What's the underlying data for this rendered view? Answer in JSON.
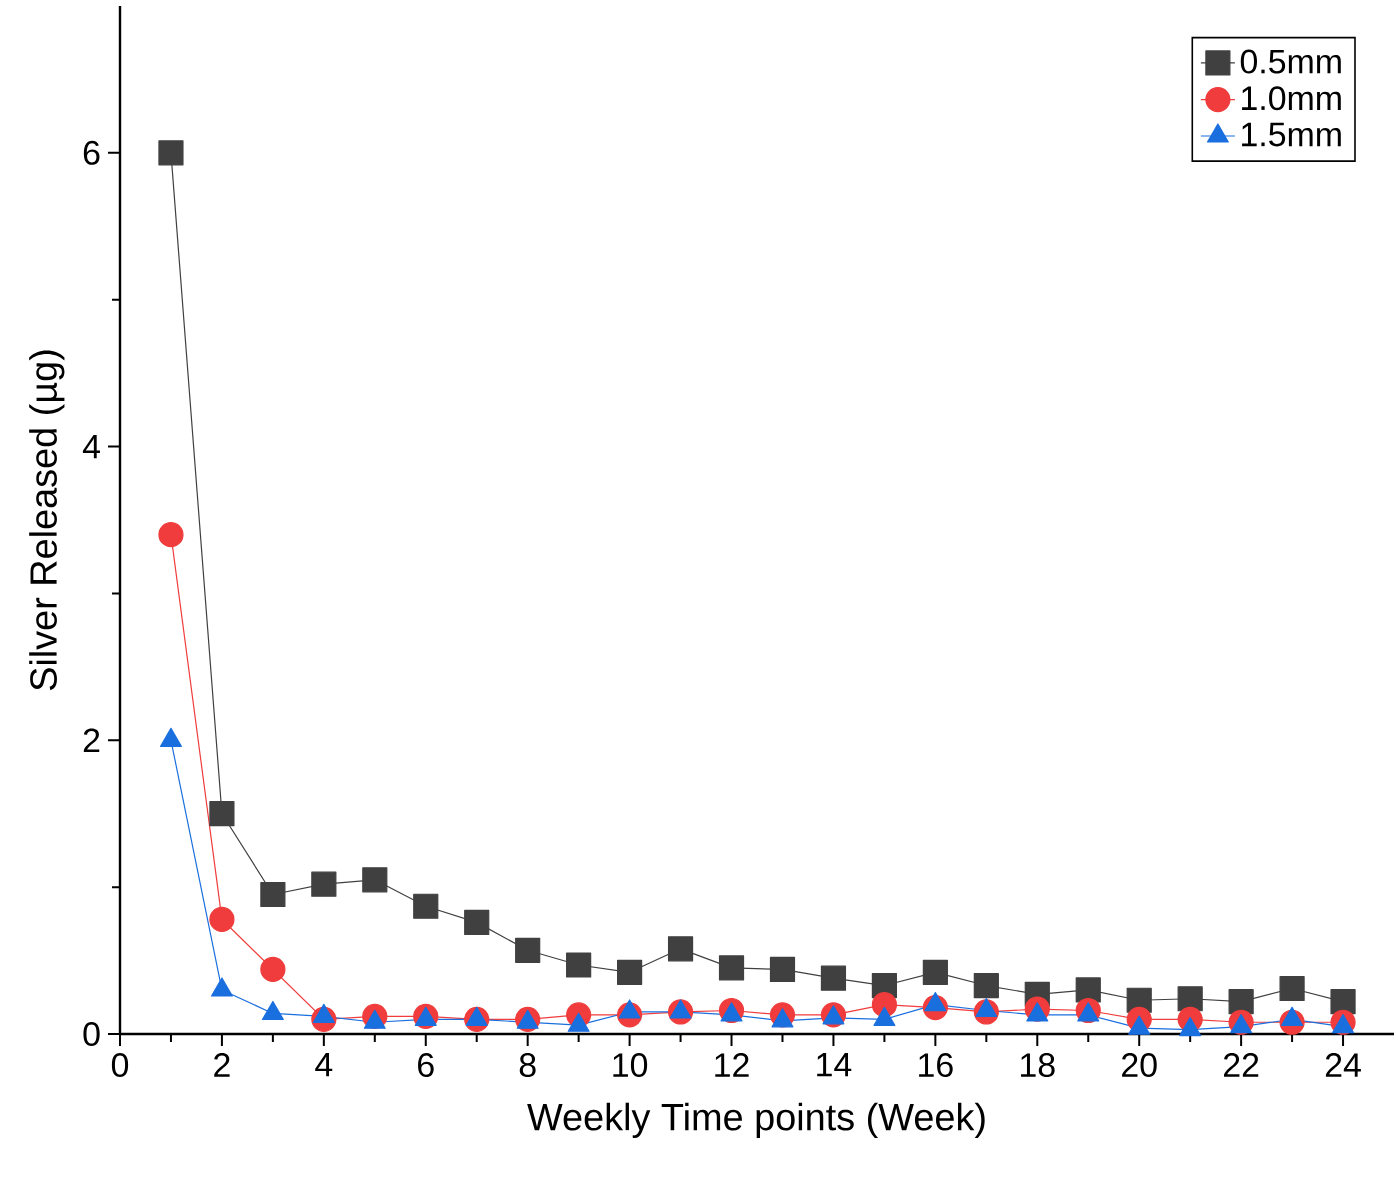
{
  "chart_data": {
    "type": "line",
    "xlabel": "Weekly Time points (Week)",
    "ylabel": "Silver Released (µg)",
    "x": [
      1,
      2,
      3,
      4,
      5,
      6,
      7,
      8,
      9,
      10,
      11,
      12,
      13,
      14,
      15,
      16,
      17,
      18,
      19,
      20,
      21,
      22,
      23,
      24
    ],
    "xlim": [
      0,
      25
    ],
    "ylim": [
      0,
      7
    ],
    "xticks": [
      0,
      2,
      4,
      6,
      8,
      10,
      12,
      14,
      16,
      18,
      20,
      22,
      24
    ],
    "yticks": [
      0,
      2,
      4,
      6
    ],
    "legend": "top right",
    "grid": false,
    "series": [
      {
        "name": "0.5mm",
        "color": "#404040",
        "marker": "square",
        "values": [
          6.0,
          1.5,
          0.95,
          1.02,
          1.05,
          0.87,
          0.76,
          0.57,
          0.47,
          0.42,
          0.58,
          0.45,
          0.44,
          0.38,
          0.33,
          0.42,
          0.33,
          0.27,
          0.3,
          0.23,
          0.24,
          0.22,
          0.31,
          0.22
        ]
      },
      {
        "name": "1.0mm",
        "color": "#f03c3c",
        "marker": "circle",
        "values": [
          3.4,
          0.78,
          0.44,
          0.1,
          0.12,
          0.12,
          0.1,
          0.1,
          0.13,
          0.13,
          0.15,
          0.16,
          0.13,
          0.13,
          0.2,
          0.18,
          0.15,
          0.17,
          0.16,
          0.1,
          0.1,
          0.08,
          0.08,
          0.08
        ]
      },
      {
        "name": "1.5mm",
        "color": "#1a6fdf",
        "marker": "triangle",
        "values": [
          2.0,
          0.3,
          0.14,
          0.12,
          0.08,
          0.1,
          0.1,
          0.08,
          0.06,
          0.15,
          0.15,
          0.13,
          0.09,
          0.11,
          0.1,
          0.2,
          0.16,
          0.13,
          0.13,
          0.04,
          0.03,
          0.05,
          0.1,
          0.05
        ]
      }
    ]
  }
}
